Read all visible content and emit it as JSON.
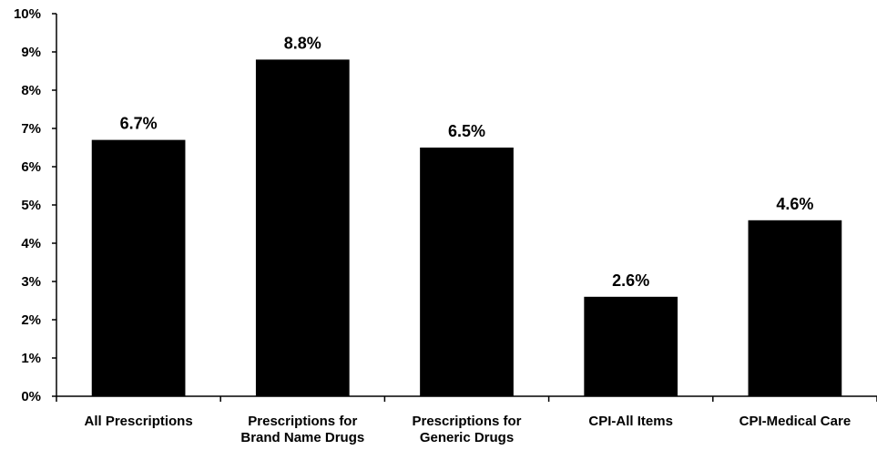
{
  "chart_data": {
    "type": "bar",
    "categories": [
      [
        "All Prescriptions"
      ],
      [
        "Prescriptions for",
        "Brand Name Drugs"
      ],
      [
        "Prescriptions for",
        "Generic Drugs"
      ],
      [
        "CPI-All Items"
      ],
      [
        "CPI-Medical Care"
      ]
    ],
    "values": [
      6.7,
      8.8,
      6.5,
      2.6,
      4.6
    ],
    "data_labels": [
      "6.7%",
      "8.8%",
      "6.5%",
      "2.6%",
      "4.6%"
    ],
    "title": "",
    "xlabel": "",
    "ylabel": "",
    "ylim": [
      0,
      10
    ],
    "y_ticks": [
      0,
      1,
      2,
      3,
      4,
      5,
      6,
      7,
      8,
      9,
      10
    ],
    "y_tick_labels": [
      "0%",
      "1%",
      "2%",
      "3%",
      "4%",
      "5%",
      "6%",
      "7%",
      "8%",
      "9%",
      "10%"
    ],
    "grid": false,
    "legend": "none",
    "bar_color": "#000000",
    "axis_color": "#000000"
  }
}
